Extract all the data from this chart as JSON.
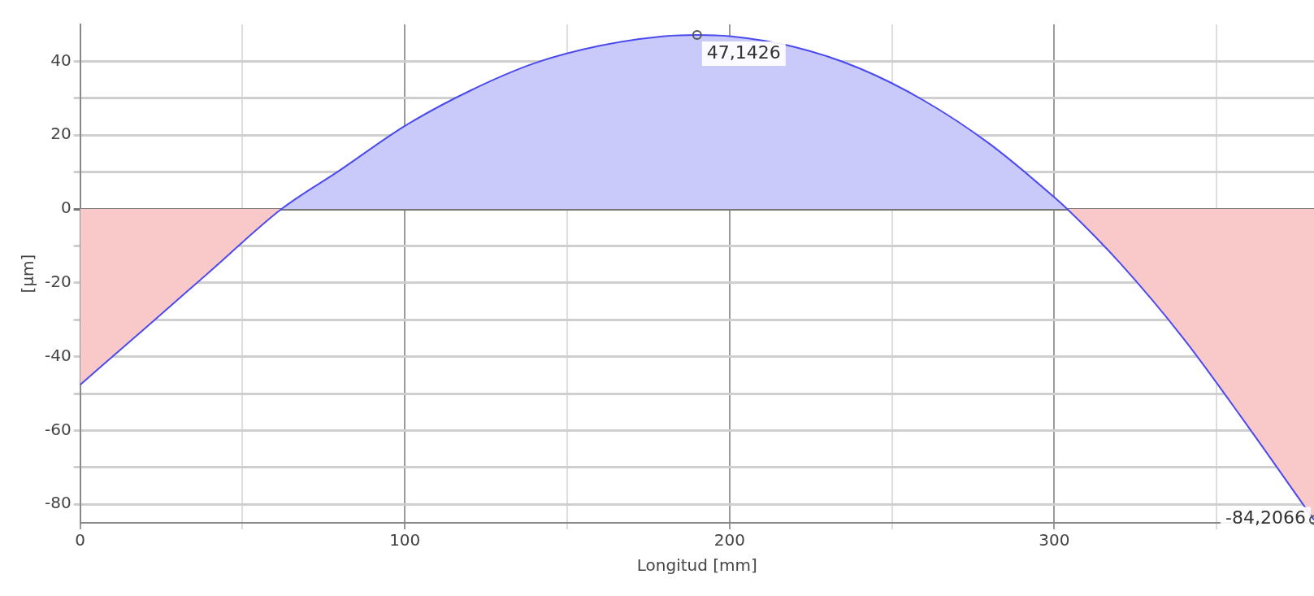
{
  "chart_data": {
    "type": "area",
    "xlabel": "Longitud [mm]",
    "ylabel": "[µm]",
    "series": [
      {
        "type": "line",
        "color": "#4a4aef",
        "x": [
          0,
          20,
          40,
          62,
          80,
          100,
          120,
          140,
          160,
          180,
          190,
          200,
          220,
          240,
          260,
          280,
          300,
          304,
          320,
          340,
          360,
          380
        ],
        "values": [
          -47.6,
          -32.3,
          -16.9,
          0,
          10.5,
          22.5,
          32,
          39.5,
          44.2,
          46.8,
          47.1426,
          46.8,
          43.9,
          38.1,
          29.3,
          17.7,
          3.2,
          0,
          -14.4,
          -35.3,
          -59.3,
          -84.2066
        ]
      },
      {
        "type": "area",
        "color": "#c9c9fa",
        "x": [
          62,
          80,
          100,
          120,
          140,
          160,
          180,
          190,
          200,
          220,
          240,
          260,
          280,
          300,
          304
        ],
        "values": [
          0,
          10.5,
          22.5,
          32,
          39.5,
          44.2,
          46.8,
          47.1426,
          46.8,
          43.9,
          38.1,
          29.3,
          17.7,
          3.2,
          0
        ]
      },
      {
        "type": "area",
        "color": "#f9c9c9",
        "x": [
          0,
          20,
          40,
          62,
          190,
          304,
          320,
          340,
          360,
          380
        ],
        "values": [
          -47.6,
          -32.3,
          -16.9,
          0,
          null,
          0,
          -14.4,
          -35.3,
          -59.3,
          -84.2066
        ]
      }
    ],
    "xlim": [
      0,
      380
    ],
    "xticks": [
      0,
      {
        "value": 50,
        "label": null
      },
      100,
      {
        "value": 150,
        "label": null
      },
      200,
      {
        "value": 250,
        "label": null
      },
      300,
      {
        "value": 350,
        "label": null
      }
    ],
    "ylim": [
      -85,
      50
    ],
    "yticks": [
      -80,
      {
        "value": -70,
        "label": null
      },
      -60,
      {
        "value": -50,
        "label": null
      },
      -40,
      {
        "value": -30,
        "label": null
      },
      -20,
      {
        "value": -10,
        "label": null
      },
      0,
      {
        "value": 10,
        "label": null
      },
      20,
      {
        "value": 30,
        "label": null
      },
      40
    ],
    "grid": true,
    "marker": "none",
    "line_style": "solid",
    "legend": false,
    "annotations": [
      {
        "text": "47,1426",
        "x": 190,
        "y": 47.1426
      },
      {
        "text": "-84,2066",
        "x": 380,
        "y": -84.2066
      }
    ]
  }
}
